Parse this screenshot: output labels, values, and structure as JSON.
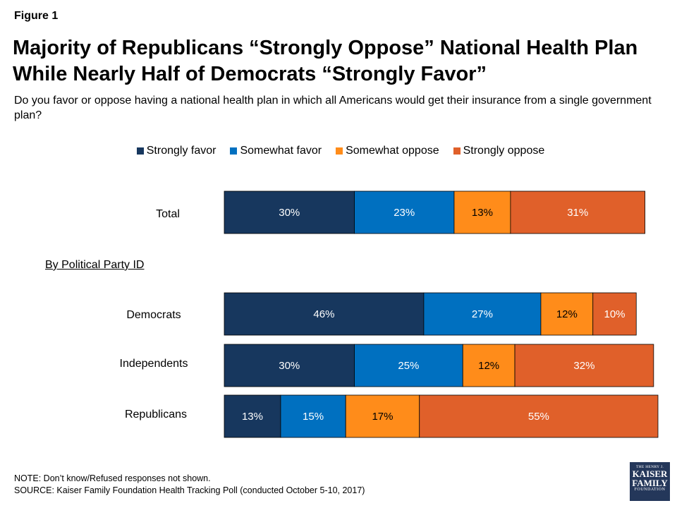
{
  "figure_label": "Figure 1",
  "title_line1": "Majority of Republicans “Strongly Oppose” National Health Plan",
  "title_line2": "While Nearly Half of Democrats “Strongly Favor”",
  "subtitle": "Do you favor or oppose having a national health plan in which all Americans would get their insurance from a single government plan?",
  "group_heading": "By Political Party ID",
  "notes": {
    "line1": "NOTE: Don’t know/Refused responses not shown.",
    "line2": "SOURCE: Kaiser Family Foundation Health Tracking Poll (conducted October 5-10, 2017)"
  },
  "logo": {
    "top": "THE HENRY J.",
    "line1": "KAISER",
    "line2": "FAMILY",
    "bottom": "FOUNDATION"
  },
  "colors": {
    "strongly_favor": "#17375e",
    "somewhat_favor": "#0070c0",
    "somewhat_oppose": "#ff8c1a",
    "strongly_oppose": "#e0602a"
  },
  "chart_data": {
    "type": "bar",
    "orientation": "horizontal-stacked",
    "categories": [
      "Total",
      "Democrats",
      "Independents",
      "Republicans"
    ],
    "series": [
      {
        "name": "Strongly favor",
        "color": "#17375e",
        "values": [
          30,
          46,
          30,
          13
        ]
      },
      {
        "name": "Somewhat favor",
        "color": "#0070c0",
        "values": [
          23,
          27,
          25,
          15
        ]
      },
      {
        "name": "Somewhat oppose",
        "color": "#ff8c1a",
        "values": [
          13,
          12,
          12,
          17
        ]
      },
      {
        "name": "Strongly oppose",
        "color": "#e0602a",
        "values": [
          31,
          10,
          32,
          55
        ]
      }
    ],
    "data_labels": [
      [
        "30%",
        "23%",
        "13%",
        "31%"
      ],
      [
        "46%",
        "27%",
        "12%",
        "10%"
      ],
      [
        "30%",
        "25%",
        "12%",
        "32%"
      ],
      [
        "13%",
        "15%",
        "17%",
        "55%"
      ]
    ],
    "legend_position": "top-center",
    "grid": false
  }
}
